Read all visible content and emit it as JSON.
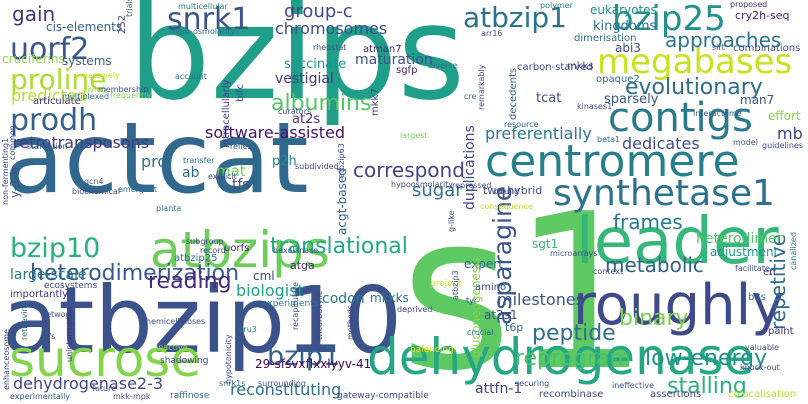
{
  "word_cloud": {
    "words": [
      {
        "text": "bzips",
        "color": "#1f9e89"
      },
      {
        "text": "s1",
        "color": "#5ec962"
      },
      {
        "text": "actcat",
        "color": "#31688e"
      },
      {
        "text": "atbzip10",
        "color": "#3b528b"
      },
      {
        "text": "leader",
        "color": "#35b779"
      },
      {
        "text": "dehydrogenase",
        "color": "#26a784"
      },
      {
        "text": "sucrose",
        "color": "#84d44b"
      },
      {
        "text": "roughly",
        "color": "#3e4a89"
      },
      {
        "text": "atbzips",
        "color": "#6ccd5a"
      },
      {
        "text": "centromere",
        "color": "#277f8e"
      },
      {
        "text": "synthetase1",
        "color": "#2c718e"
      },
      {
        "text": "megabases",
        "color": "#cae11f"
      },
      {
        "text": "contigs",
        "color": "#2a778e"
      },
      {
        "text": "uorf2",
        "color": "#39568c"
      },
      {
        "text": "bzip25",
        "color": "#21918c"
      },
      {
        "text": "atbzip1",
        "color": "#2c728e"
      },
      {
        "text": "snrk1",
        "color": "#3b528b"
      },
      {
        "text": "prodh",
        "color": "#355f8d"
      },
      {
        "text": "proline",
        "color": "#addc30"
      },
      {
        "text": "gain",
        "color": "#46337e"
      },
      {
        "text": "bzip10",
        "color": "#2ab07f"
      },
      {
        "text": "bzip1",
        "color": "#33638d"
      },
      {
        "text": "asparagine",
        "color": "#3a548c"
      },
      {
        "text": "heterodimerization",
        "color": "#375a8c"
      },
      {
        "text": "translational",
        "color": "#22a884"
      },
      {
        "text": "reprogram",
        "color": "#4ac16d"
      },
      {
        "text": "low-energy",
        "color": "#20928c"
      },
      {
        "text": "stalling",
        "color": "#2ab07f"
      },
      {
        "text": "peptide",
        "color": "#2e6e8e"
      },
      {
        "text": "binary",
        "color": "#7ad151"
      },
      {
        "text": "evolutionary",
        "color": "#2f6c8e"
      },
      {
        "text": "approaches",
        "color": "#2b758e"
      },
      {
        "text": "albumins",
        "color": "#52c569"
      },
      {
        "text": "correspond",
        "color": "#414487"
      },
      {
        "text": "reading",
        "color": "#482878"
      },
      {
        "text": "metabolic",
        "color": "#33628d"
      },
      {
        "text": "repetitive",
        "color": "#306a8e"
      },
      {
        "text": "frames",
        "color": "#2a788e"
      },
      {
        "text": "chromosomes",
        "color": "#3d4d8a"
      },
      {
        "text": "group-c",
        "color": "#3f4889"
      },
      {
        "text": "software-assisted",
        "color": "#471365"
      },
      {
        "text": "retrotransposons",
        "color": "#443983"
      },
      {
        "text": "dehydrogenase2-3",
        "color": "#404688"
      },
      {
        "text": "reconstituting",
        "color": "#2e6f8e"
      },
      {
        "text": "biologist",
        "color": "#1fa088"
      },
      {
        "text": "sugar",
        "color": "#2d718e"
      },
      {
        "text": "predicted",
        "color": "#b5de2b"
      },
      {
        "text": "preferentially",
        "color": "#29798e"
      },
      {
        "text": "milestones",
        "color": "#3b528b"
      },
      {
        "text": "dedicates",
        "color": "#3d4e8a"
      },
      {
        "text": "large-scale",
        "color": "#2a768e"
      },
      {
        "text": "codon",
        "color": "#2a788e"
      },
      {
        "text": "mkkks",
        "color": "#2b748e"
      },
      {
        "text": "maturation",
        "color": "#3c508b"
      },
      {
        "text": "vestigial",
        "color": "#453781"
      },
      {
        "text": "succinate",
        "color": "#1f988b"
      },
      {
        "text": "mb",
        "color": "#404688"
      },
      {
        "text": "cis-elements",
        "color": "#33638d"
      },
      {
        "text": "cruciferins",
        "color": "#8fd744"
      },
      {
        "text": "systems",
        "color": "#35608d"
      },
      {
        "text": "kingdoms",
        "color": "#2d708e"
      },
      {
        "text": "eukaryotes",
        "color": "#228d8d"
      },
      {
        "text": "cry2h-seq",
        "color": "#482374"
      },
      {
        "text": "pro",
        "color": "#2e6f8e"
      },
      {
        "text": "mat",
        "color": "#6ece58"
      },
      {
        "text": "tfs",
        "color": "#3f4788"
      },
      {
        "text": "ab",
        "color": "#2c728e"
      },
      {
        "text": "p2h",
        "color": "#23898e"
      },
      {
        "text": "at2s",
        "color": "#453581"
      },
      {
        "text": "atga",
        "color": "#472c7a"
      },
      {
        "text": "cml",
        "color": "#404588"
      },
      {
        "text": "heterodimer",
        "color": "#52c569"
      },
      {
        "text": "adjustment",
        "color": "#1f968b"
      },
      {
        "text": "expert",
        "color": "#31688e"
      },
      {
        "text": "sgt1",
        "color": "#35b779"
      },
      {
        "text": "at2s1",
        "color": "#3c4f8a"
      },
      {
        "text": "t6p",
        "color": "#2f6b8e"
      },
      {
        "text": "attfn-1",
        "color": "#3f4889"
      },
      {
        "text": "29-sfsvxflxxlyyv-41",
        "color": "#440154"
      },
      {
        "text": "two-hybrid",
        "color": "#3b518b"
      },
      {
        "text": "tcat",
        "color": "#3e4c8a"
      },
      {
        "text": "sparsely",
        "color": "#38588c"
      },
      {
        "text": "man7",
        "color": "#3a548c"
      },
      {
        "text": "effort",
        "color": "#8bd646"
      },
      {
        "text": "abi3",
        "color": "#3e4989"
      },
      {
        "text": "dimerisation",
        "color": "#2e6e8e"
      },
      {
        "text": "combinations",
        "color": "#3c508b"
      },
      {
        "text": "mkks",
        "color": "#46307e"
      },
      {
        "text": "opaque2",
        "color": "#2c728e"
      },
      {
        "text": "atman7",
        "color": "#482173"
      },
      {
        "text": "sgfp",
        "color": "#482576"
      },
      {
        "text": "intracellularly",
        "color": "#433e85"
      },
      {
        "text": "bifc",
        "color": "#3e4a89"
      },
      {
        "text": "articulate",
        "color": "#46327e"
      },
      {
        "text": "en",
        "color": "#472d7b"
      },
      {
        "text": "b3s",
        "color": "#2a788e"
      },
      {
        "text": "paint",
        "color": "#472f7d"
      },
      {
        "text": "colocalisation",
        "color": "#b5de2b"
      },
      {
        "text": "assertions",
        "color": "#3f4788"
      },
      {
        "text": "gateway-compatible",
        "color": "#3e4a89"
      },
      {
        "text": "recombinase",
        "color": "#3d4e8a"
      },
      {
        "text": "raffinose",
        "color": "#2e6d8e"
      },
      {
        "text": "shadowing",
        "color": "#3f4788"
      },
      {
        "text": "experiments",
        "color": "#2a788e"
      },
      {
        "text": "balancing",
        "color": "#efe51c"
      },
      {
        "text": "project",
        "color": "#bddf26"
      },
      {
        "text": "importantly",
        "color": "#453581"
      },
      {
        "text": "gluconeogenesis",
        "color": "#84d44b"
      },
      {
        "text": "uorfs",
        "color": "#482071"
      },
      {
        "text": "atbzip25",
        "color": "#2e6f8e"
      },
      {
        "text": "ecosystems",
        "color": "#3e4a89"
      },
      {
        "text": "multiplexed",
        "color": "#2c738e"
      },
      {
        "text": "massively",
        "color": "#c0df25"
      },
      {
        "text": "living",
        "color": "#98d83e"
      },
      {
        "text": "membership",
        "color": "#3b528b"
      },
      {
        "text": "frequently",
        "color": "#7ad151"
      },
      {
        "text": "starvation",
        "color": "#365c8d"
      },
      {
        "text": "retrieving",
        "color": "#2e6e8e"
      },
      {
        "text": "network",
        "color": "#3d4e8a"
      },
      {
        "text": "uninterrupted",
        "color": "#46327e"
      },
      {
        "text": "orfs",
        "color": "#3e4a89"
      },
      {
        "text": "enhanceosome",
        "color": "#3f4788"
      },
      {
        "text": "experimentally",
        "color": "#39558c"
      },
      {
        "text": "future",
        "color": "#3f4889"
      },
      {
        "text": "mkk-mpk",
        "color": "#3e4a89"
      },
      {
        "text": "multicellular",
        "color": "#2a778e"
      },
      {
        "text": "hypo-osmolarity",
        "color": "#31688e"
      },
      {
        "text": "account",
        "color": "#2c738e"
      },
      {
        "text": "rheostat",
        "color": "#3b518b"
      },
      {
        "text": "diverse",
        "color": "#2e6f8e"
      },
      {
        "text": "carbon-starved",
        "color": "#3c4f8a"
      },
      {
        "text": "mkk7",
        "color": "#443a83"
      },
      {
        "text": "decedents",
        "color": "#35608d"
      },
      {
        "text": "polymer",
        "color": "#29798e"
      },
      {
        "text": "proposed",
        "color": "#46317e"
      },
      {
        "text": "sirt",
        "color": "#3a548c"
      },
      {
        "text": "kinases1",
        "color": "#3d4e8a"
      },
      {
        "text": "interactome",
        "color": "#38598c"
      },
      {
        "text": "remarkably",
        "color": "#3e4a89"
      },
      {
        "text": "cre",
        "color": "#306a8e"
      },
      {
        "text": "arr16",
        "color": "#3f4788"
      },
      {
        "text": "largest",
        "color": "#7ad151"
      },
      {
        "text": "resource",
        "color": "#35608d"
      },
      {
        "text": "beta1",
        "color": "#2d708e"
      },
      {
        "text": "model",
        "color": "#3b528b"
      },
      {
        "text": "guidelines",
        "color": "#3e4a89"
      },
      {
        "text": "canalized",
        "color": "#2a778e"
      },
      {
        "text": "y-2-h",
        "color": "#3e4c8a"
      },
      {
        "text": "gcn4",
        "color": "#3b528b"
      },
      {
        "text": "emergent",
        "color": "#2c728e"
      },
      {
        "text": "biochemical",
        "color": "#3f4889"
      },
      {
        "text": "subgroup",
        "color": "#3e4a89"
      },
      {
        "text": "record",
        "color": "#3d4e8a"
      },
      {
        "text": "hexokinase",
        "color": "#3b528b"
      },
      {
        "text": "planta",
        "color": "#2e6e8e"
      },
      {
        "text": "hypoosmolarity",
        "color": "#3e4a89"
      },
      {
        "text": "microarrays",
        "color": "#3e4c8a"
      },
      {
        "text": "consequence",
        "color": "#c2df23"
      },
      {
        "text": "repressed",
        "color": "#3f4788"
      },
      {
        "text": "facilitate",
        "color": "#3e4a89"
      },
      {
        "text": "context",
        "color": "#3b528b"
      },
      {
        "text": "explicit",
        "color": "#3e4a89"
      },
      {
        "text": "subdivided",
        "color": "#3f4889"
      },
      {
        "text": "transfer",
        "color": "#2e6e8e"
      },
      {
        "text": "relies",
        "color": "#3b528b"
      },
      {
        "text": "curators",
        "color": "#3f4788"
      },
      {
        "text": "deprived",
        "color": "#3e4a89"
      },
      {
        "text": "crucial",
        "color": "#2c728e"
      },
      {
        "text": "ineffective",
        "color": "#3b528b"
      },
      {
        "text": "knock-out",
        "color": "#3e4a89"
      },
      {
        "text": "valuable",
        "color": "#3f4889"
      },
      {
        "text": "securing",
        "color": "#3e4c8a"
      },
      {
        "text": "surrounding",
        "color": "#3d4e8a"
      },
      {
        "text": "hemicelluloses",
        "color": "#3b528b"
      },
      {
        "text": "inactive",
        "color": "#98d83e"
      },
      {
        "text": "tricarboxylic",
        "color": "#3e4a89"
      },
      {
        "text": "recapitulate",
        "color": "#3b528b"
      },
      {
        "text": "snrk1s",
        "color": "#2e6e8e"
      },
      {
        "text": "cru3",
        "color": "#2a788e"
      },
      {
        "text": "hypotonicity",
        "color": "#3e4a89"
      },
      {
        "text": "methods",
        "color": "#3f4788"
      },
      {
        "text": "amino",
        "color": "#3b528b"
      },
      {
        "text": "tyr",
        "color": "#3e4a89"
      },
      {
        "text": "atbzip3",
        "color": "#3b528b"
      },
      {
        "text": "atbzip63",
        "color": "#3e4a89"
      },
      {
        "text": "acgt-based",
        "color": "#35608d"
      },
      {
        "text": "duplications",
        "color": "#3f4889"
      },
      {
        "text": "bound",
        "color": "#3e4a89"
      },
      {
        "text": "g-like",
        "color": "#3b528b"
      },
      {
        "text": "252",
        "color": "#3e4a89"
      },
      {
        "text": "non-fermenting1",
        "color": "#3e4a89"
      },
      {
        "text": "common",
        "color": "#3d4e8a"
      },
      {
        "text": "trials",
        "color": "#3b528b"
      }
    ]
  }
}
